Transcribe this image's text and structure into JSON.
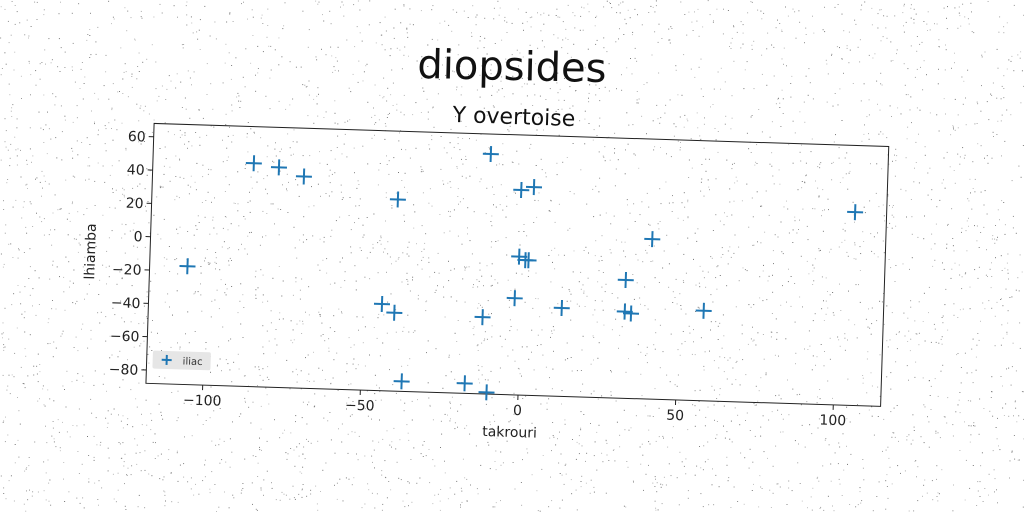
{
  "colors": {
    "background": "#ffffff",
    "marker": "#1f77b4",
    "frame": "#222222",
    "noise": "#5a5a5a",
    "legend_bg": "#e6e6e6"
  },
  "chart_data": {
    "type": "scatter",
    "title": "diopsides",
    "subtitle": "Y overtoise",
    "xlabel": "takrouri",
    "ylabel": "lhiamba",
    "xlim": [
      -118,
      115
    ],
    "ylim": [
      -88,
      68
    ],
    "xticks": [
      -100,
      -50,
      0,
      50,
      100
    ],
    "yticks": [
      -80,
      -60,
      -40,
      -20,
      0,
      20,
      40,
      60
    ],
    "xtick_labels": [
      "−100",
      "−50",
      "0",
      "50",
      "100"
    ],
    "ytick_labels": [
      "−80",
      "−60",
      "−40",
      "−20",
      "0",
      "20",
      "40",
      "60"
    ],
    "grid": false,
    "legend_position": "lower-left",
    "marker": "plus",
    "series": [
      {
        "name": "iliac",
        "x": [
          -86,
          -78,
          -70,
          -40,
          -11,
          -1,
          3,
          -106,
          -1,
          1,
          2,
          41,
          33,
          -44,
          -40,
          -12,
          -2,
          13,
          33,
          35,
          58,
          -37,
          -17,
          -10,
          105
        ],
        "y": [
          46,
          44,
          39,
          27,
          56,
          35,
          37,
          -17,
          -5,
          -7,
          -7,
          8,
          -17,
          -36,
          -41,
          -42,
          -30,
          -35,
          -36,
          -37,
          -34,
          -82,
          -82,
          -87,
          28
        ]
      }
    ]
  }
}
